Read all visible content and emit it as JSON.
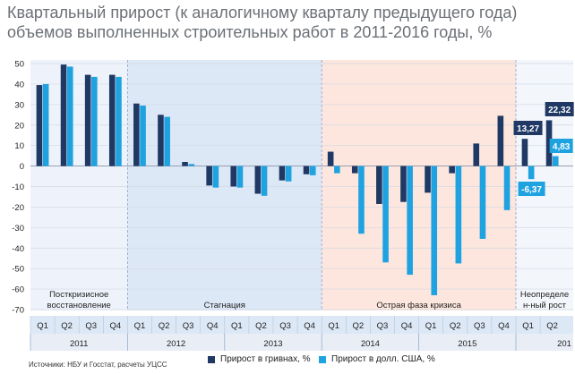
{
  "title_line1": "Квартальный прирост (к аналогичному кварталу предыдущего года)",
  "title_line2": "объемов выполненных строительных работ в 2011-2016 годы, %",
  "source": "Источники: НБУ и Госстат, расчеты УЦСС",
  "colors": {
    "uah": "#1f3864",
    "usd": "#1fa2e0",
    "phase1_bg": "#eef3fb",
    "phase2_bg": "#dde8f6",
    "phase3_bg": "#fde6de",
    "phase4_bg": "#f3f6fb"
  },
  "chart_data": {
    "type": "bar",
    "categories": [
      "Q1",
      "Q2",
      "Q3",
      "Q4",
      "Q1",
      "Q2",
      "Q3",
      "Q4",
      "Q1",
      "Q2",
      "Q3",
      "Q4",
      "Q1",
      "Q2",
      "Q3",
      "Q4",
      "Q1",
      "Q2",
      "Q3",
      "Q4",
      "Q1",
      "Q2"
    ],
    "years": [
      "2011",
      "2012",
      "2013",
      "2014",
      "2015",
      "201"
    ],
    "series": [
      {
        "name": "Прирост в гривнах, %",
        "values": [
          39.5,
          49.5,
          44.5,
          44.5,
          30.5,
          25,
          2,
          -9.5,
          -10,
          -13.5,
          -7,
          -4,
          7,
          -3.5,
          -18.5,
          -17.5,
          -13,
          -3.5,
          11,
          24.5,
          13.27,
          22.32
        ]
      },
      {
        "name": "Прирост в долл. США, %",
        "values": [
          40,
          48.5,
          43.5,
          43.5,
          29.5,
          24,
          1,
          -10.5,
          -10.5,
          -14.5,
          -7.5,
          -4.5,
          -3.5,
          -33,
          -47,
          -53,
          -63,
          -47.5,
          -35.5,
          -21.5,
          -6.37,
          4.83
        ]
      }
    ],
    "ylim": [
      -70,
      50
    ],
    "yticks": [
      "50",
      "40",
      "30",
      "20",
      "10",
      "0",
      "-10",
      "-20",
      "-30",
      "-40",
      "-50",
      "-60",
      "-70"
    ],
    "phases": [
      "Посткризисное\nвосстановление",
      "Стагнация",
      "Острая фаза кризиса",
      "Неопределе\nн-ный рост"
    ],
    "annotations": [
      "13,27",
      "22,32",
      "-6,37",
      "4,83"
    ],
    "grid": true,
    "legend_position": "bottom"
  }
}
